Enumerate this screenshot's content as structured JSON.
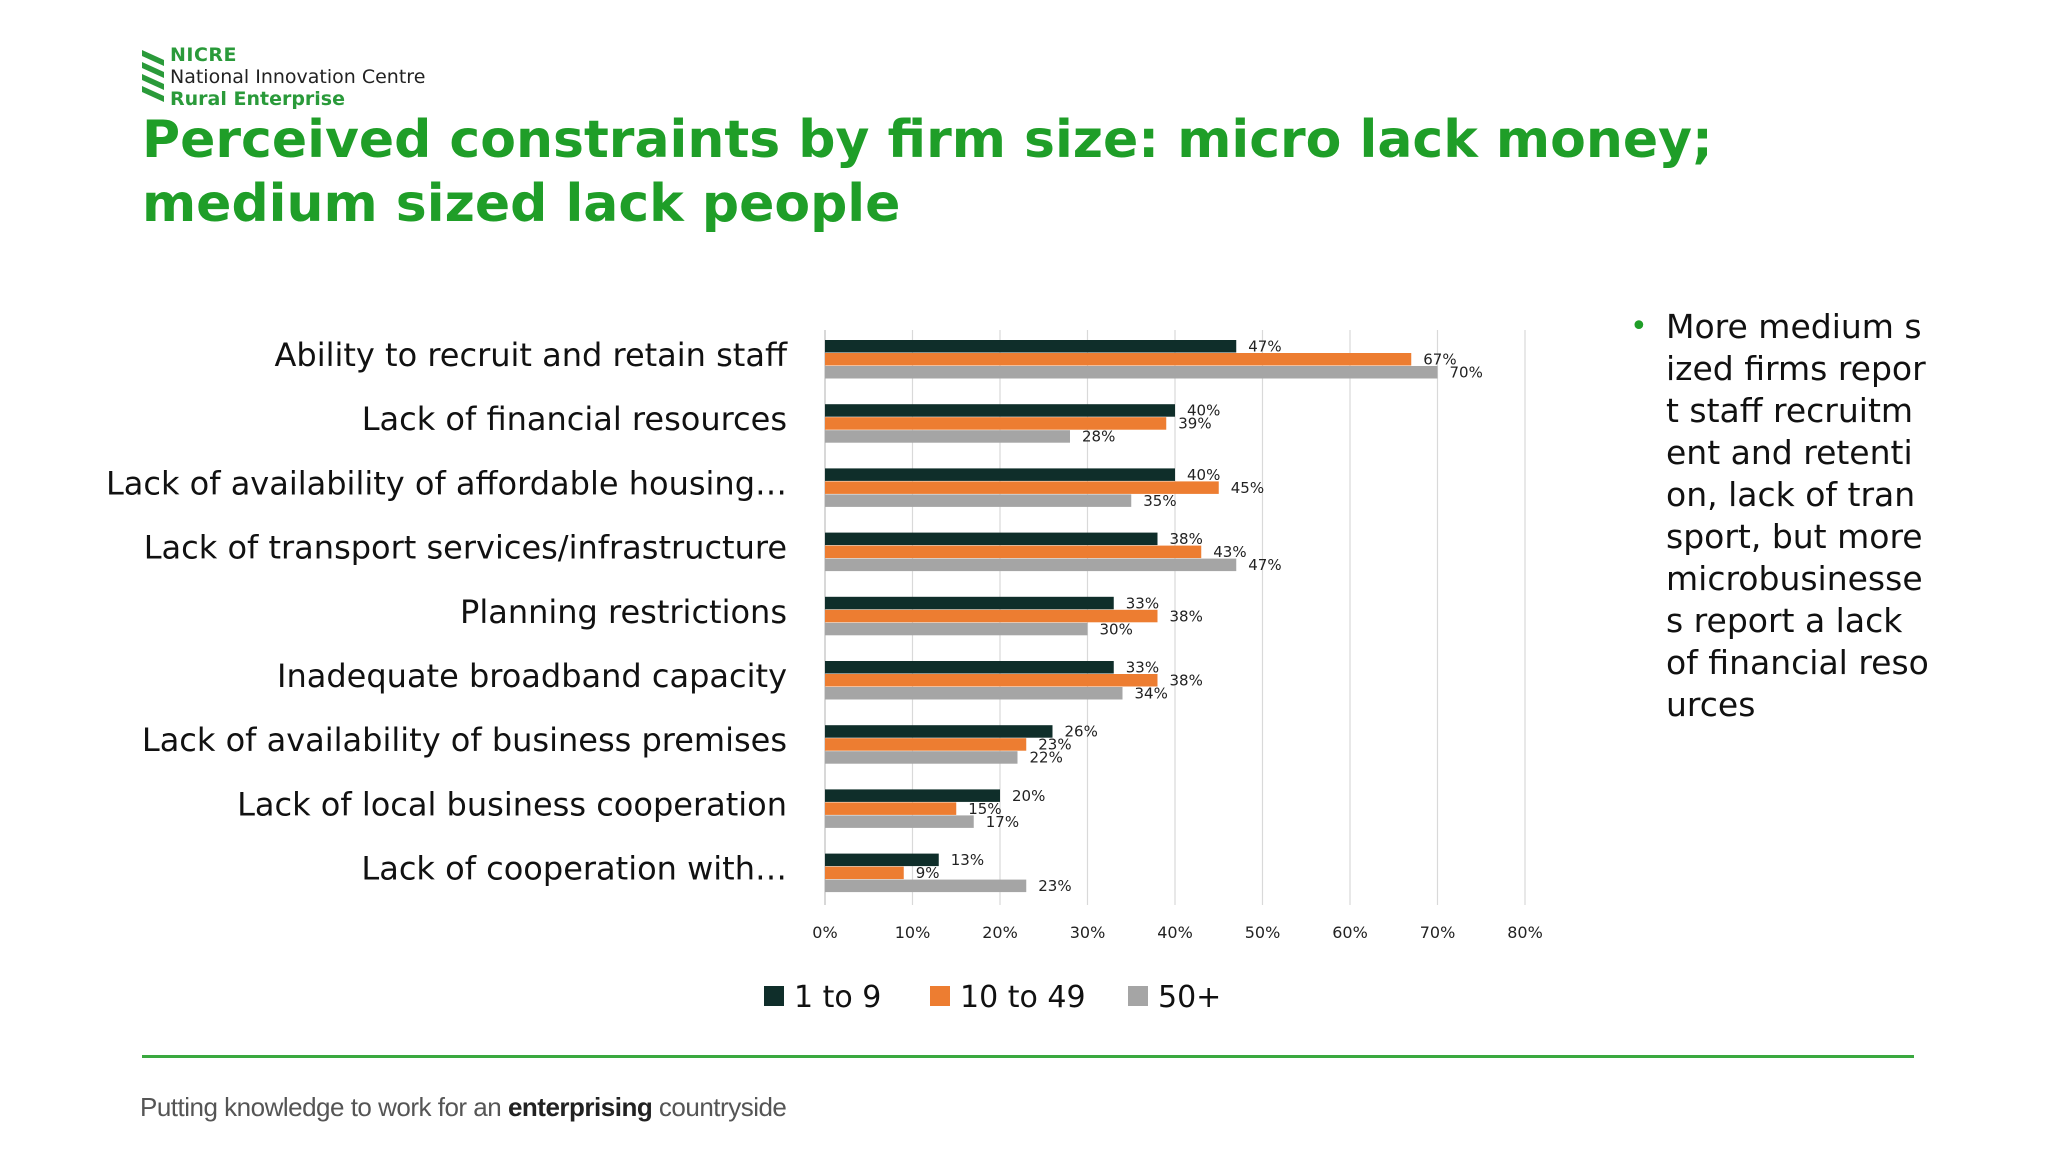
{
  "logo": {
    "brand": "NICRE",
    "line1": "National Innovation Centre",
    "line2": "Rural Enterprise"
  },
  "title": "Perceived constraints by firm size: micro lack money; medium sized lack people",
  "bullets": [
    "More medium sized firms report staff recruitment and retention, lack of transport, but more microbusinesses report a lack of financial resources"
  ],
  "footer": {
    "part1": "Putting knowledge to work for an ",
    "emphasis": "enterprising",
    "part2": " countryside"
  },
  "colors": {
    "title": "#1f9e28",
    "series_1": "#0f2e2a",
    "series_2": "#ed7d31",
    "series_3": "#a5a5a5",
    "rule": "#3aa83f"
  },
  "chart_data": {
    "type": "bar",
    "orientation": "horizontal",
    "categories": [
      "Ability to recruit and retain staff",
      "Lack of financial resources",
      "Lack of availability of affordable housing…",
      "Lack of transport services/infrastructure",
      "Planning restrictions",
      "Inadequate broadband capacity",
      "Lack of availability of business premises",
      "Lack of local business cooperation",
      "Lack of cooperation with…"
    ],
    "series": [
      {
        "name": "1 to 9",
        "values": [
          47,
          40,
          40,
          38,
          33,
          33,
          26,
          20,
          13
        ]
      },
      {
        "name": "10 to 49",
        "values": [
          67,
          39,
          45,
          43,
          38,
          38,
          23,
          15,
          9
        ]
      },
      {
        "name": "50+",
        "values": [
          70,
          28,
          35,
          47,
          30,
          34,
          22,
          17,
          23
        ]
      }
    ],
    "value_suffix": "%",
    "xlim": [
      0,
      80
    ],
    "xticks": [
      "0%",
      "10%",
      "20%",
      "30%",
      "40%",
      "50%",
      "60%",
      "70%",
      "80%"
    ],
    "grid": "vertical",
    "legend_position": "bottom"
  }
}
